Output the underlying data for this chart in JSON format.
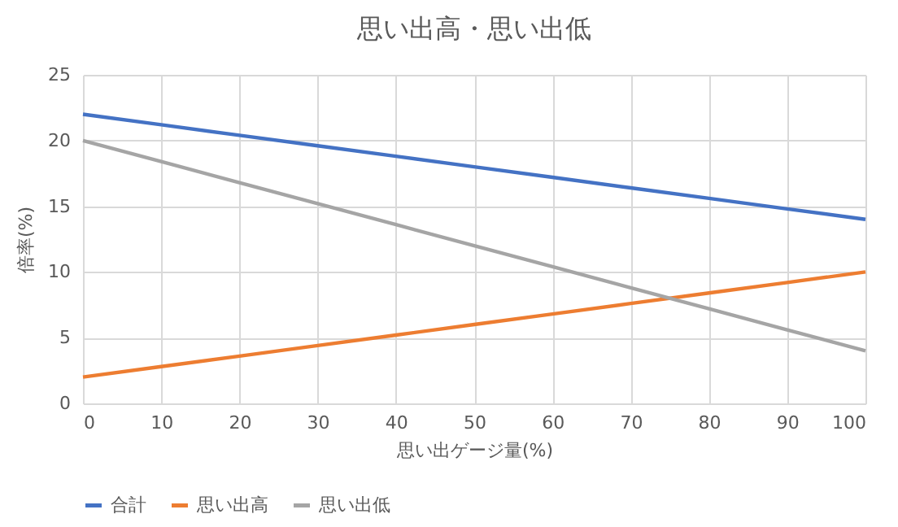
{
  "chart_data": {
    "type": "line",
    "title": "思い出高・思い出低",
    "xlabel": "思い出ゲージ量(%)",
    "ylabel": "倍率(%)",
    "x": [
      0,
      10,
      20,
      30,
      40,
      50,
      60,
      70,
      80,
      90,
      100
    ],
    "series": [
      {
        "name": "合計",
        "color": "#4472c4",
        "values": [
          22,
          21.2,
          20.4,
          19.6,
          18.8,
          18,
          17.2,
          16.4,
          15.6,
          14.8,
          14
        ]
      },
      {
        "name": "思い出高",
        "color": "#ed7d31",
        "values": [
          2,
          2.8,
          3.6,
          4.4,
          5.2,
          6,
          6.8,
          7.6,
          8.4,
          9.2,
          10
        ]
      },
      {
        "name": "思い出低",
        "color": "#a5a5a5",
        "values": [
          20,
          18.4,
          16.8,
          15.2,
          13.6,
          12,
          10.4,
          8.8,
          7.2,
          5.6,
          4
        ]
      }
    ],
    "xlim": [
      0,
      100
    ],
    "xticks": [
      0,
      10,
      20,
      30,
      40,
      50,
      60,
      70,
      80,
      90,
      100
    ],
    "ylim": [
      0,
      25
    ],
    "yticks": [
      0,
      5,
      10,
      15,
      20,
      25
    ],
    "grid": true,
    "legend": "bottom",
    "marker": "none",
    "line_style": "solid"
  }
}
